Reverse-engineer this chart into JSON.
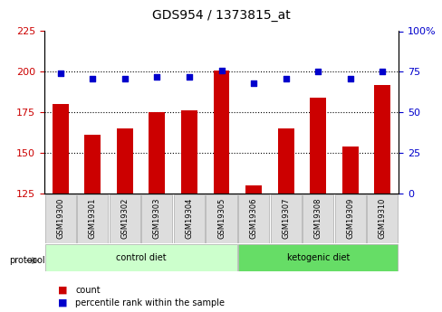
{
  "title": "GDS954 / 1373815_at",
  "samples": [
    "GSM19300",
    "GSM19301",
    "GSM19302",
    "GSM19303",
    "GSM19304",
    "GSM19305",
    "GSM19306",
    "GSM19307",
    "GSM19308",
    "GSM19309",
    "GSM19310"
  ],
  "counts": [
    180,
    161,
    165,
    175,
    176,
    201,
    130,
    165,
    184,
    154,
    192
  ],
  "percentiles": [
    74,
    71,
    71,
    72,
    72,
    76,
    68,
    71,
    75,
    71,
    75
  ],
  "ylim_left": [
    125,
    225
  ],
  "ylim_right": [
    0,
    100
  ],
  "yticks_left": [
    125,
    150,
    175,
    200,
    225
  ],
  "yticks_right": [
    0,
    25,
    50,
    75,
    100
  ],
  "bar_color": "#cc0000",
  "dot_color": "#0000cc",
  "bar_width": 0.5,
  "groups": [
    {
      "label": "control diet",
      "indices": [
        0,
        1,
        2,
        3,
        4,
        5
      ],
      "color": "#ccffcc"
    },
    {
      "label": "ketogenic diet",
      "indices": [
        6,
        7,
        8,
        9,
        10
      ],
      "color": "#66dd66"
    }
  ],
  "protocol_label": "protocol",
  "legend_count_label": "count",
  "legend_percentile_label": "percentile rank within the sample",
  "grid_yticks": [
    150,
    175,
    200
  ],
  "background_color": "#ffffff",
  "plot_bg_color": "#ffffff",
  "label_color_left": "#cc0000",
  "label_color_right": "#0000cc"
}
